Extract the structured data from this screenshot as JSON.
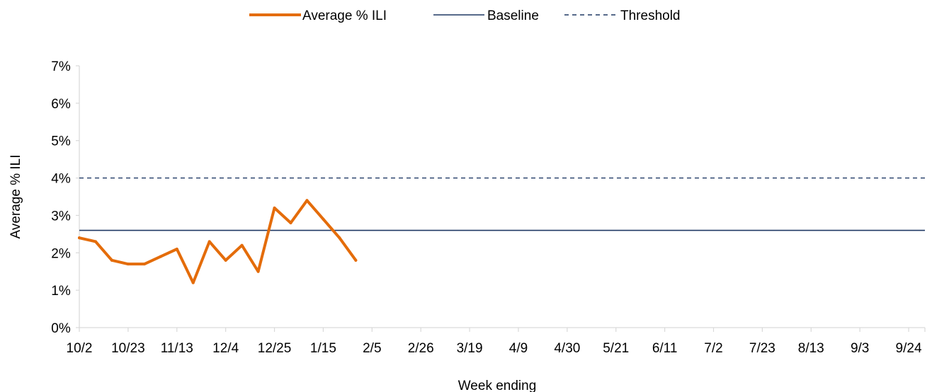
{
  "chart_data": {
    "type": "line",
    "title": "",
    "xlabel": "Week ending",
    "ylabel": "Average % ILI",
    "ylim": [
      0,
      7
    ],
    "y_unit": "%",
    "y_ticks": [
      0,
      1,
      2,
      3,
      4,
      5,
      6,
      7
    ],
    "y_tick_labels": [
      "0%",
      "1%",
      "2%",
      "3%",
      "4%",
      "5%",
      "6%",
      "7%"
    ],
    "x_tick_labels": [
      "10/2",
      "10/23",
      "11/13",
      "12/4",
      "12/25",
      "1/15",
      "2/5",
      "2/26",
      "3/19",
      "4/9",
      "4/30",
      "5/21",
      "6/11",
      "7/2",
      "7/23",
      "8/13",
      "9/3",
      "9/24"
    ],
    "weeks_per_tick": 3,
    "total_weeks": 52,
    "grid": false,
    "legend_position": "top-center",
    "series": [
      {
        "name": "Average % ILI",
        "style": "solid-thick",
        "color": "#E46C0A",
        "week_labels": [
          "10/2",
          "10/9",
          "10/16",
          "10/23",
          "10/30",
          "11/6",
          "11/13",
          "11/20",
          "11/27",
          "12/4",
          "12/11",
          "12/18",
          "12/25",
          "1/1",
          "1/8",
          "1/15",
          "1/22",
          "1/29"
        ],
        "values": [
          2.4,
          2.3,
          1.8,
          1.7,
          1.7,
          1.9,
          2.1,
          1.2,
          2.3,
          1.8,
          2.2,
          1.5,
          3.2,
          2.8,
          3.4,
          2.9,
          2.4,
          1.8
        ]
      },
      {
        "name": "Baseline",
        "style": "solid-thin",
        "color": "#1F3864",
        "constant": 2.6
      },
      {
        "name": "Threshold",
        "style": "dashed",
        "color": "#1F3864",
        "constant": 4.0
      }
    ]
  },
  "colors": {
    "axis": "#D9D9D9",
    "text": "#000000",
    "ili_line": "#E46C0A",
    "baseline_line": "#1F3864",
    "threshold_line": "#1F3864"
  }
}
